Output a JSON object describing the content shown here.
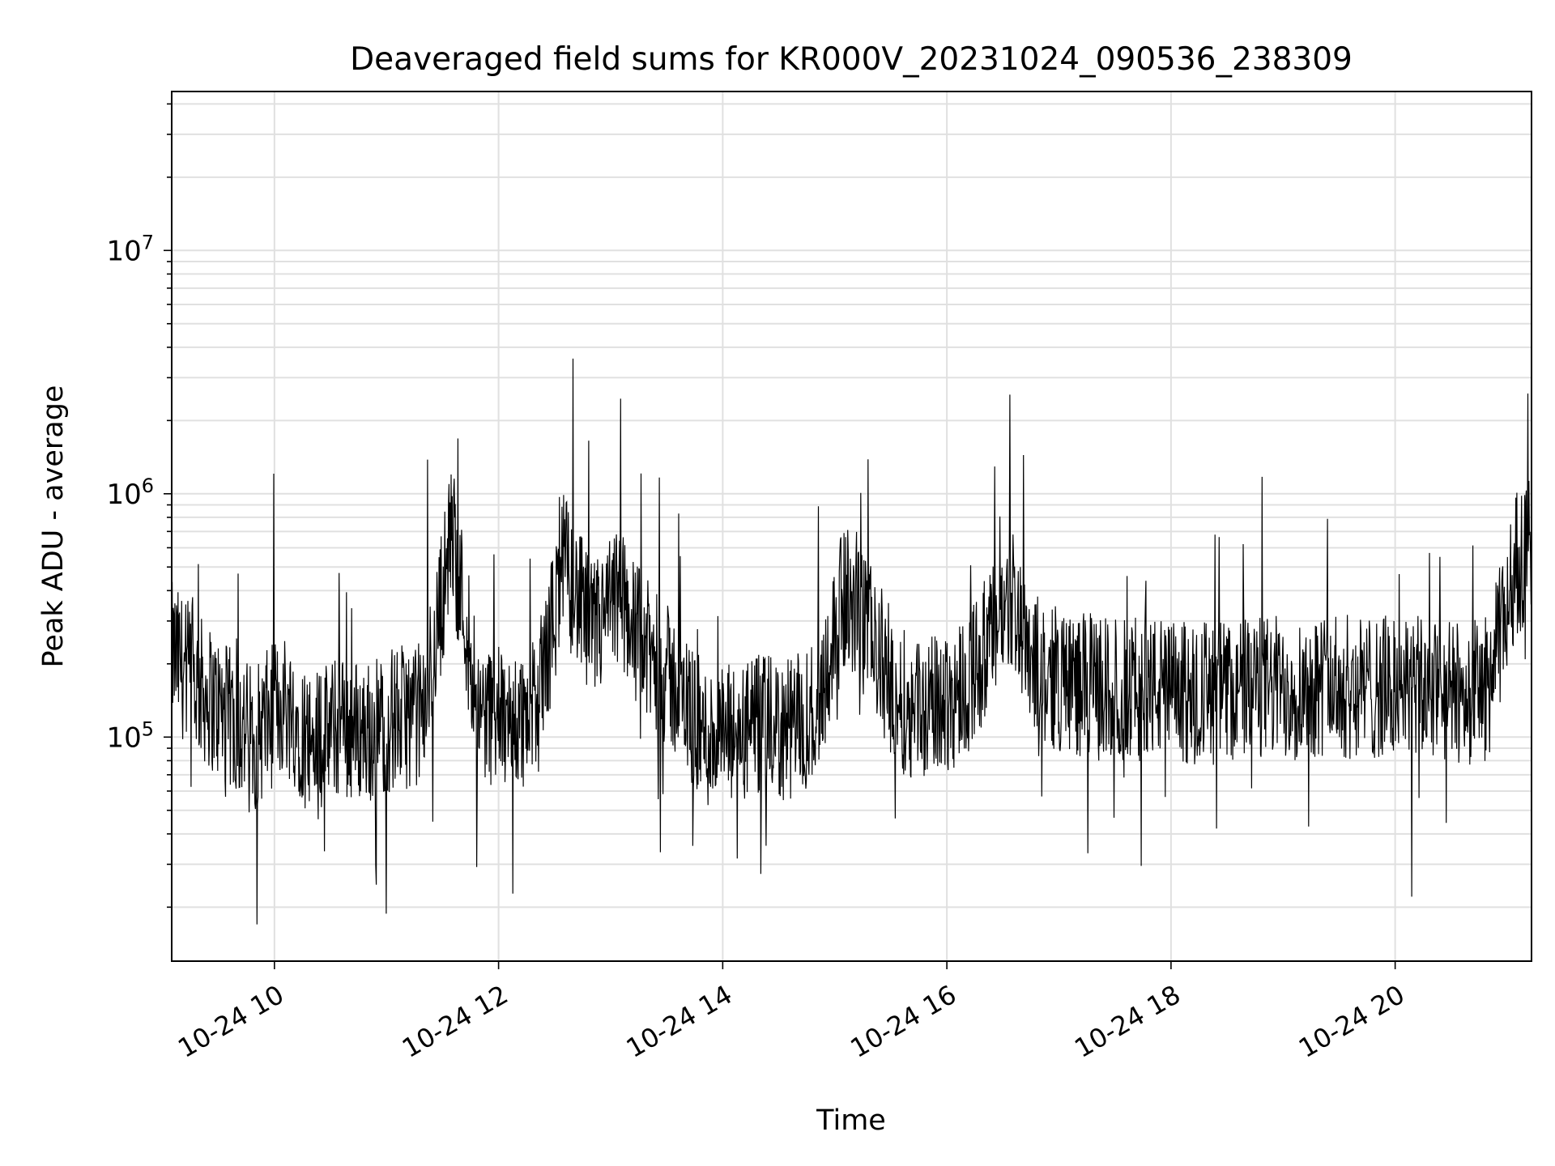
{
  "chart_data": {
    "type": "line",
    "title": "Deaveraged field sums for KR000V_20231024_090536_238309",
    "xlabel": "Time",
    "ylabel": "Peak ADU - average",
    "yscale": "log",
    "ylim": [
      12000,
      45000000
    ],
    "xlim": [
      "2023-10-24 09:05",
      "2023-10-24 21:13"
    ],
    "grid": true,
    "line_color": "#000000",
    "grid_color": "#e0e0e0",
    "x_ticks": [
      {
        "value": "2023-10-24 10:00",
        "label": "10-24 10"
      },
      {
        "value": "2023-10-24 12:00",
        "label": "10-24 12"
      },
      {
        "value": "2023-10-24 14:00",
        "label": "10-24 14"
      },
      {
        "value": "2023-10-24 16:00",
        "label": "10-24 16"
      },
      {
        "value": "2023-10-24 18:00",
        "label": "10-24 18"
      },
      {
        "value": "2023-10-24 20:00",
        "label": "10-24 20"
      }
    ],
    "y_ticks": [
      {
        "value": 100000,
        "base": "10",
        "exp": "5"
      },
      {
        "value": 1000000,
        "base": "10",
        "exp": "6"
      },
      {
        "value": 10000000,
        "base": "10",
        "exp": "7"
      }
    ],
    "series": [
      {
        "x": [
          "2023-10-24 09:05",
          "2023-10-24 09:20",
          "2023-10-24 09:35",
          "2023-10-24 09:50",
          "2023-10-24 10:05",
          "2023-10-24 10:20",
          "2023-10-24 10:35",
          "2023-10-24 10:50",
          "2023-10-24 11:05",
          "2023-10-24 11:20",
          "2023-10-24 11:35",
          "2023-10-24 11:50",
          "2023-10-24 12:05",
          "2023-10-24 12:20",
          "2023-10-24 12:35",
          "2023-10-24 12:50",
          "2023-10-24 13:05",
          "2023-10-24 13:20",
          "2023-10-24 13:35",
          "2023-10-24 13:50",
          "2023-10-24 14:05",
          "2023-10-24 14:20",
          "2023-10-24 14:35",
          "2023-10-24 14:50",
          "2023-10-24 15:05",
          "2023-10-24 15:20",
          "2023-10-24 15:35",
          "2023-10-24 15:50",
          "2023-10-24 16:05",
          "2023-10-24 16:20",
          "2023-10-24 16:35",
          "2023-10-24 16:50",
          "2023-10-24 17:05",
          "2023-10-24 17:20",
          "2023-10-24 17:35",
          "2023-10-24 17:50",
          "2023-10-24 18:05",
          "2023-10-24 18:20",
          "2023-10-24 18:35",
          "2023-10-24 18:50",
          "2023-10-24 19:05",
          "2023-10-24 19:20",
          "2023-10-24 19:35",
          "2023-10-24 19:50",
          "2023-10-24 20:05",
          "2023-10-24 20:20",
          "2023-10-24 20:35",
          "2023-10-24 20:50",
          "2023-10-24 21:05",
          "2023-10-24 21:13"
        ],
        "y": [
          220000,
          160000,
          120000,
          100000,
          140000,
          95000,
          110000,
          105000,
          120000,
          125000,
          700000,
          130000,
          115000,
          125000,
          520000,
          260000,
          380000,
          220000,
          160000,
          100000,
          100000,
          110000,
          105000,
          130000,
          380000,
          250000,
          140000,
          130000,
          150000,
          220000,
          380000,
          180000,
          170000,
          160000,
          155000,
          160000,
          150000,
          155000,
          155000,
          160000,
          160000,
          165000,
          160000,
          160000,
          160000,
          155000,
          150000,
          160000,
          520000,
          600000
        ]
      }
    ]
  }
}
